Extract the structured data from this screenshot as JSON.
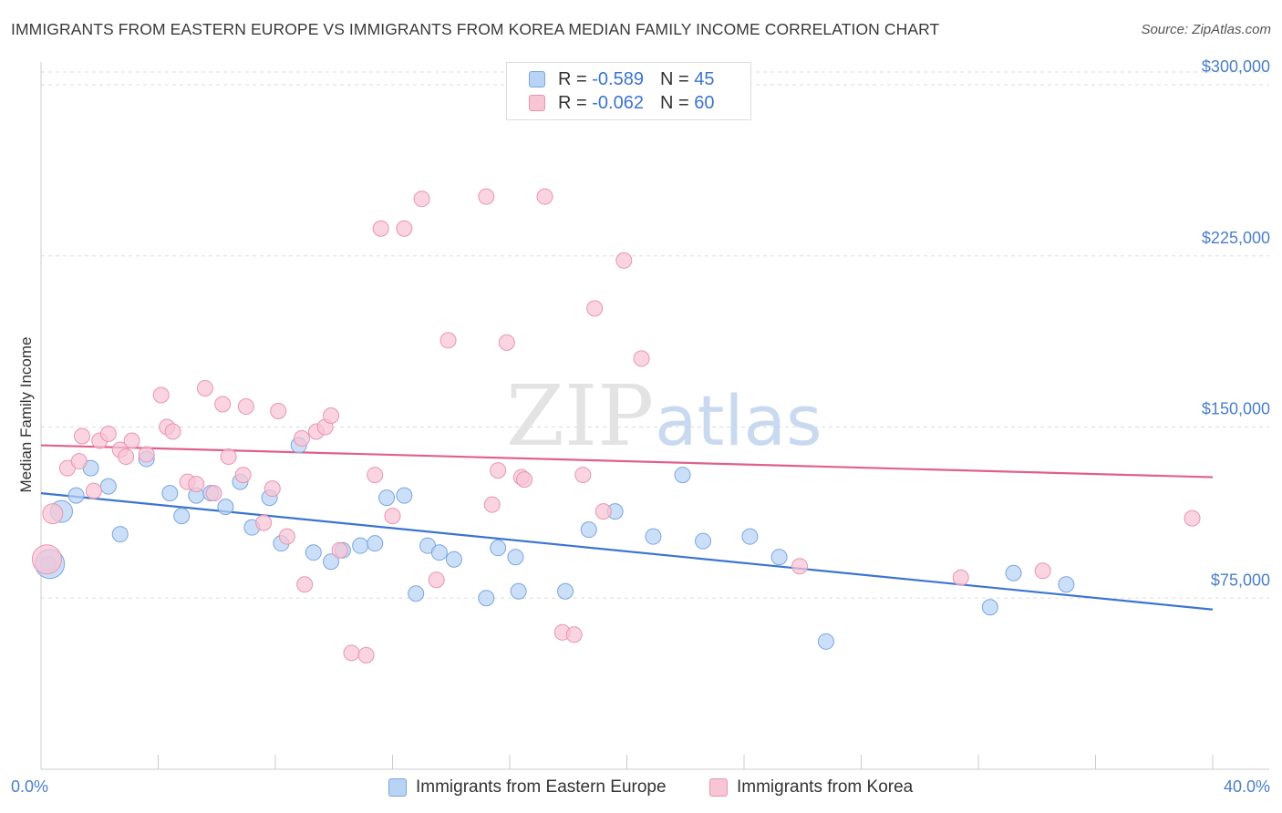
{
  "title": "IMMIGRANTS FROM EASTERN EUROPE VS IMMIGRANTS FROM KOREA MEDIAN FAMILY INCOME CORRELATION CHART",
  "source": "Source: ZipAtlas.com",
  "watermark": {
    "zip": "ZIP",
    "atlas": "atlas"
  },
  "legend_top": [
    {
      "r_label": "R =",
      "r_value": "-0.589",
      "n_label": "N =",
      "n_value": "45"
    },
    {
      "r_label": "R =",
      "r_value": "-0.062",
      "n_label": "N =",
      "n_value": "60"
    }
  ],
  "legend_bottom": [
    "Immigrants from Eastern Europe",
    "Immigrants from Korea"
  ],
  "colors": {
    "blue_fill": "#b9d3f5",
    "blue_stroke": "#7aa6e0",
    "blue_line": "#3b74d0",
    "pink_fill": "#f8c5d5",
    "pink_stroke": "#e995b0",
    "pink_line": "#e0608a",
    "tick_text": "#4a7fc8",
    "grid": "#dddddd"
  },
  "chart_data": {
    "type": "scatter",
    "title": "IMMIGRANTS FROM EASTERN EUROPE VS IMMIGRANTS FROM KOREA MEDIAN FAMILY INCOME CORRELATION CHART",
    "xlabel": "",
    "ylabel": "Median Family Income",
    "xlim": [
      0,
      40
    ],
    "ylim": [
      0,
      310000
    ],
    "x_tick_labels": [
      {
        "value": 0,
        "label": "0.0%"
      },
      {
        "value": 40,
        "label": "40.0%"
      }
    ],
    "x_minor_ticks": [
      0,
      4,
      8,
      12,
      16,
      20,
      24,
      28,
      32,
      36,
      40
    ],
    "y_ticks": [
      {
        "value": 75000,
        "label": "$75,000"
      },
      {
        "value": 150000,
        "label": "$150,000"
      },
      {
        "value": 225000,
        "label": "$225,000"
      },
      {
        "value": 300000,
        "label": "$300,000"
      }
    ],
    "grid": "horizontal dashed",
    "legend": "top-center",
    "series": [
      {
        "name": "Immigrants from Eastern Europe",
        "color": "#b9d3f5",
        "points": [
          [
            0.25,
            90000
          ],
          [
            0.7,
            113000
          ],
          [
            1.2,
            120000
          ],
          [
            1.7,
            132000
          ],
          [
            2.3,
            124000
          ],
          [
            2.7,
            103000
          ],
          [
            3.6,
            136000
          ],
          [
            4.4,
            121000
          ],
          [
            4.8,
            111000
          ],
          [
            5.3,
            120000
          ],
          [
            5.8,
            121000
          ],
          [
            6.3,
            115000
          ],
          [
            6.8,
            126000
          ],
          [
            7.2,
            106000
          ],
          [
            7.8,
            119000
          ],
          [
            8.2,
            99000
          ],
          [
            8.8,
            142000
          ],
          [
            9.3,
            95000
          ],
          [
            9.9,
            91000
          ],
          [
            10.3,
            96000
          ],
          [
            10.9,
            98000
          ],
          [
            11.4,
            99000
          ],
          [
            11.8,
            119000
          ],
          [
            12.4,
            120000
          ],
          [
            12.8,
            77000
          ],
          [
            13.2,
            98000
          ],
          [
            13.6,
            95000
          ],
          [
            14.1,
            92000
          ],
          [
            15.2,
            75000
          ],
          [
            15.6,
            97000
          ],
          [
            16.2,
            93000
          ],
          [
            16.3,
            78000
          ],
          [
            17.9,
            78000
          ],
          [
            18.7,
            105000
          ],
          [
            19.6,
            113000
          ],
          [
            20.9,
            102000
          ],
          [
            21.9,
            129000
          ],
          [
            22.6,
            100000
          ],
          [
            24.2,
            102000
          ],
          [
            25.2,
            93000
          ],
          [
            26.8,
            56000
          ],
          [
            32.4,
            71000
          ],
          [
            33.2,
            86000
          ],
          [
            35.0,
            81000
          ],
          [
            0.3,
            90000
          ]
        ],
        "trend": {
          "x": [
            0,
            40
          ],
          "y": [
            121000,
            70000
          ]
        }
      },
      {
        "name": "Immigrants from Korea",
        "color": "#f8c5d5",
        "points": [
          [
            0.4,
            112000
          ],
          [
            0.9,
            132000
          ],
          [
            1.3,
            135000
          ],
          [
            1.4,
            146000
          ],
          [
            1.8,
            122000
          ],
          [
            2.0,
            144000
          ],
          [
            2.3,
            147000
          ],
          [
            2.7,
            140000
          ],
          [
            2.9,
            137000
          ],
          [
            3.1,
            144000
          ],
          [
            3.6,
            138000
          ],
          [
            4.1,
            164000
          ],
          [
            4.3,
            150000
          ],
          [
            4.5,
            148000
          ],
          [
            5.0,
            126000
          ],
          [
            5.3,
            125000
          ],
          [
            5.6,
            167000
          ],
          [
            5.9,
            121000
          ],
          [
            6.2,
            160000
          ],
          [
            6.4,
            137000
          ],
          [
            6.9,
            129000
          ],
          [
            7.0,
            159000
          ],
          [
            7.6,
            108000
          ],
          [
            7.9,
            123000
          ],
          [
            8.1,
            157000
          ],
          [
            8.4,
            102000
          ],
          [
            8.9,
            145000
          ],
          [
            9.0,
            81000
          ],
          [
            9.4,
            148000
          ],
          [
            9.7,
            150000
          ],
          [
            9.9,
            155000
          ],
          [
            10.2,
            96000
          ],
          [
            10.6,
            51000
          ],
          [
            11.1,
            50000
          ],
          [
            11.4,
            129000
          ],
          [
            11.6,
            237000
          ],
          [
            12.0,
            111000
          ],
          [
            12.4,
            237000
          ],
          [
            13.0,
            250000
          ],
          [
            13.5,
            83000
          ],
          [
            13.9,
            188000
          ],
          [
            15.2,
            251000
          ],
          [
            15.4,
            116000
          ],
          [
            15.6,
            131000
          ],
          [
            15.9,
            187000
          ],
          [
            16.4,
            128000
          ],
          [
            16.5,
            127000
          ],
          [
            17.2,
            251000
          ],
          [
            17.8,
            60000
          ],
          [
            18.2,
            59000
          ],
          [
            18.5,
            129000
          ],
          [
            18.9,
            202000
          ],
          [
            19.2,
            113000
          ],
          [
            19.9,
            223000
          ],
          [
            20.5,
            180000
          ],
          [
            25.9,
            89000
          ],
          [
            31.4,
            84000
          ],
          [
            34.2,
            87000
          ],
          [
            39.3,
            110000
          ],
          [
            0.2,
            92000
          ]
        ],
        "trend": {
          "x": [
            0,
            40
          ],
          "y": [
            142000,
            128000
          ]
        }
      }
    ]
  }
}
